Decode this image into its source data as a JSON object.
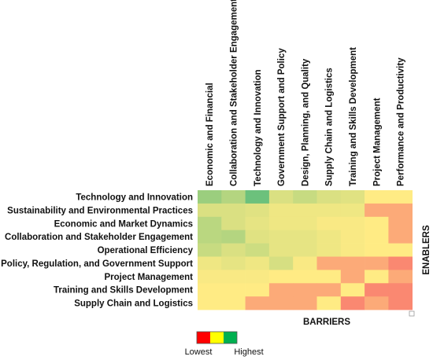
{
  "chart_data": {
    "type": "heatmap",
    "title": "",
    "xlabel": "ENABLERS",
    "ylabel": "BARRIERS",
    "columns": [
      "Economic and Financial",
      "Collaboration and Stakeholder Engagement",
      "Technology and Innovation",
      "Government Support and Policy",
      "Design, Planning, and Quality",
      "Supply Chain and Logistics",
      "Training and Skills Development",
      "Project Management",
      "Performance and Productivity"
    ],
    "rows": [
      "Technology and Innovation",
      "Sustainability and Environmental Practices",
      "Economic and Market Dynamics",
      "Collaboration and Stakeholder Engagement",
      "Operational Efficiency",
      "Policy, Regulation, and Government Support",
      "Project Management",
      "Training and Skills Development",
      "Supply Chain and Logistics"
    ],
    "values": [
      [
        0.82,
        0.74,
        0.97,
        0.62,
        0.68,
        0.62,
        0.6,
        0.5,
        0.5
      ],
      [
        0.62,
        0.62,
        0.6,
        0.55,
        0.55,
        0.55,
        0.55,
        0.25,
        0.25
      ],
      [
        0.72,
        0.62,
        0.58,
        0.55,
        0.55,
        0.52,
        0.52,
        0.5,
        0.25
      ],
      [
        0.72,
        0.74,
        0.6,
        0.58,
        0.58,
        0.55,
        0.52,
        0.5,
        0.25
      ],
      [
        0.68,
        0.62,
        0.66,
        0.58,
        0.58,
        0.55,
        0.52,
        0.5,
        0.5
      ],
      [
        0.55,
        0.58,
        0.55,
        0.63,
        0.52,
        0.25,
        0.25,
        0.25,
        0.12
      ],
      [
        0.52,
        0.52,
        0.52,
        0.5,
        0.5,
        0.5,
        0.25,
        0.5,
        0.25
      ],
      [
        0.5,
        0.5,
        0.5,
        0.25,
        0.25,
        0.25,
        0.5,
        0.12,
        0.12
      ],
      [
        0.5,
        0.5,
        0.25,
        0.25,
        0.25,
        0.5,
        0.12,
        0.25,
        0.12
      ]
    ],
    "color_scale": {
      "low": "#f8696b",
      "mid": "#ffeb84",
      "high": "#63be7b"
    },
    "legend": {
      "colors": [
        "#ff0000",
        "#ffff00",
        "#00b050"
      ],
      "low_label": "Lowest",
      "high_label": "Highest"
    }
  }
}
